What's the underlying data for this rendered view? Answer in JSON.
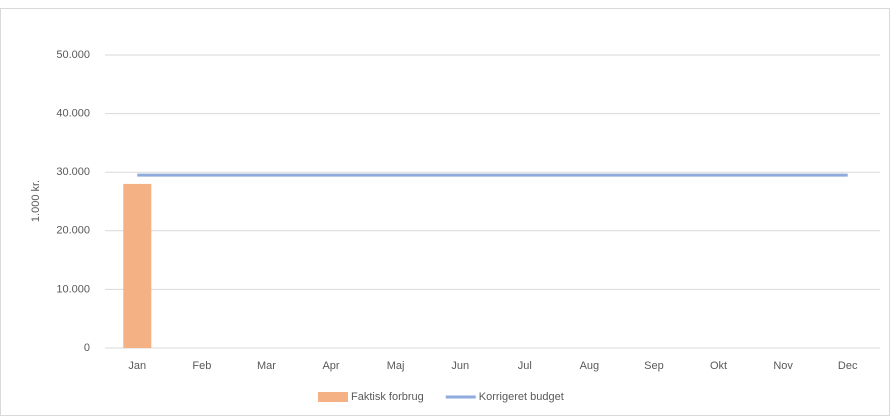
{
  "chart_data": {
    "type": "bar",
    "y_label": "1.000 kr.",
    "categories": [
      "Jan",
      "Feb",
      "Mar",
      "Apr",
      "Maj",
      "Jun",
      "Jul",
      "Aug",
      "Sep",
      "Okt",
      "Nov",
      "Dec"
    ],
    "series": [
      {
        "name": "Faktisk forbrug",
        "type": "bar",
        "color": "#f4b183",
        "values": [
          28000,
          null,
          null,
          null,
          null,
          null,
          null,
          null,
          null,
          null,
          null,
          null
        ]
      },
      {
        "name": "Korrigeret budget",
        "type": "line",
        "color": "#8faadc",
        "values": [
          29500,
          29500,
          29500,
          29500,
          29500,
          29500,
          29500,
          29500,
          29500,
          29500,
          29500,
          29500
        ]
      }
    ],
    "ylim": [
      0,
      50000
    ],
    "yticks": [
      0,
      {
        "value": 10000,
        "label": "10.000"
      },
      {
        "value": 20000,
        "label": "20.000"
      },
      {
        "value": 30000,
        "label": "30.000"
      },
      {
        "value": 40000,
        "label": "40.000"
      },
      {
        "value": 50000,
        "label": "50.000"
      }
    ],
    "grid": true,
    "legend": "bottom"
  }
}
